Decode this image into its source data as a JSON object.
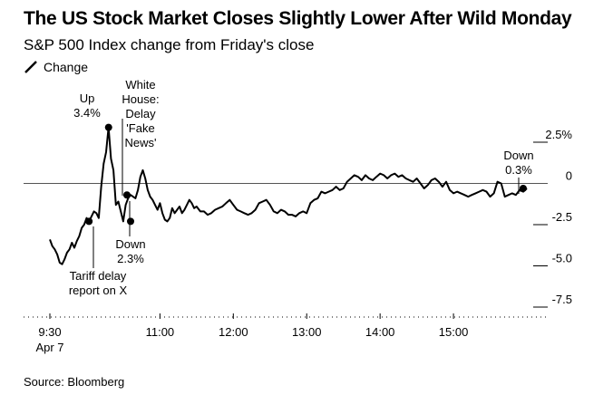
{
  "chart_data": {
    "type": "line",
    "title": "The US Stock Market Closes Slightly Lower After Wild Monday",
    "subtitle": "S&P 500 Index change from Friday's close",
    "legend": [
      {
        "label": "Change",
        "color": "#000000"
      }
    ],
    "source": "Source: Bloomberg",
    "xlabel": "",
    "ylabel": "",
    "x_ticks": [
      {
        "label": "9:30",
        "sublabel": "Apr 7",
        "value": 0
      },
      {
        "label": "11:00",
        "value": 90
      },
      {
        "label": "12:00",
        "value": 150
      },
      {
        "label": "13:00",
        "value": 210
      },
      {
        "label": "14:00",
        "value": 270
      },
      {
        "label": "15:00",
        "value": 330
      }
    ],
    "y_ticks": [
      {
        "label": "2.5%",
        "value": 2.5
      },
      {
        "label": "0",
        "value": 0
      },
      {
        "label": "-2.5",
        "value": -2.5
      },
      {
        "label": "-5.0",
        "value": -5.0
      },
      {
        "label": "-7.5",
        "value": -7.5
      }
    ],
    "xlim": [
      0,
      390
    ],
    "ylim": [
      -8.5,
      3.6
    ],
    "series": [
      {
        "name": "Change",
        "x": [
          0,
          2,
          4,
          6,
          8,
          10,
          12,
          14,
          16,
          18,
          20,
          22,
          24,
          26,
          28,
          30,
          32,
          34,
          36,
          38,
          40,
          42,
          44,
          46,
          48,
          50,
          52,
          54,
          56,
          58,
          60,
          62,
          64,
          66,
          68,
          70,
          72,
          74,
          76,
          78,
          80,
          82,
          84,
          86,
          88,
          90,
          92,
          94,
          96,
          98,
          100,
          102,
          104,
          106,
          108,
          110,
          112,
          114,
          116,
          118,
          120,
          123,
          126,
          129,
          132,
          135,
          138,
          141,
          144,
          147,
          150,
          153,
          156,
          159,
          162,
          165,
          168,
          171,
          174,
          177,
          180,
          183,
          186,
          189,
          192,
          195,
          198,
          201,
          204,
          207,
          210,
          213,
          216,
          219,
          222,
          225,
          228,
          231,
          234,
          237,
          240,
          243,
          246,
          249,
          252,
          255,
          258,
          261,
          264,
          267,
          270,
          273,
          276,
          279,
          282,
          285,
          288,
          291,
          294,
          297,
          300,
          303,
          306,
          309,
          312,
          315,
          318,
          321,
          324,
          327,
          330,
          333,
          336,
          339,
          342,
          345,
          348,
          351,
          354,
          357,
          360,
          363,
          366,
          369,
          372,
          375,
          378,
          381,
          384,
          387,
          390
        ],
        "y": [
          -3.4,
          -3.8,
          -4.0,
          -4.3,
          -4.8,
          -4.9,
          -4.6,
          -4.2,
          -4.0,
          -3.6,
          -3.9,
          -3.5,
          -3.2,
          -2.7,
          -2.5,
          -2.1,
          -2.3,
          -2.0,
          -1.7,
          -1.8,
          -2.1,
          -0.2,
          1.2,
          1.9,
          3.4,
          1.5,
          0.8,
          -1.3,
          -1.1,
          -1.7,
          -2.3,
          -1.3,
          -0.9,
          -0.7,
          -0.8,
          -0.9,
          -0.4,
          0.4,
          0.8,
          0.3,
          -0.4,
          -0.8,
          -1.0,
          -1.3,
          -1.6,
          -1.2,
          -1.8,
          -2.2,
          -2.3,
          -2.1,
          -1.5,
          -1.8,
          -1.6,
          -1.4,
          -1.8,
          -1.6,
          -1.3,
          -1.0,
          -1.2,
          -1.5,
          -1.4,
          -1.7,
          -1.7,
          -1.9,
          -1.8,
          -1.6,
          -1.5,
          -1.4,
          -1.2,
          -1.0,
          -1.3,
          -1.6,
          -1.7,
          -1.8,
          -1.9,
          -1.8,
          -1.6,
          -1.2,
          -1.1,
          -1.0,
          -1.3,
          -1.7,
          -1.8,
          -1.6,
          -1.7,
          -1.9,
          -1.9,
          -2.0,
          -1.8,
          -1.7,
          -1.8,
          -1.2,
          -1.0,
          -0.9,
          -0.5,
          -0.6,
          -0.5,
          -0.4,
          -0.2,
          -0.4,
          -0.3,
          0.1,
          0.3,
          0.5,
          0.4,
          0.2,
          0.5,
          0.3,
          0.2,
          0.4,
          0.6,
          0.5,
          0.3,
          0.5,
          0.6,
          0.4,
          0.5,
          0.3,
          0.2,
          0.1,
          0.3,
          0.0,
          -0.3,
          -0.1,
          0.2,
          0.3,
          0.1,
          -0.2,
          0.1,
          -0.4,
          -0.6,
          -0.5,
          -0.6,
          -0.7,
          -0.8,
          -0.7,
          -0.6,
          -0.5,
          -0.4,
          -0.5,
          -0.8,
          -0.6,
          0.1,
          0.0,
          -0.8,
          -0.7,
          -0.6,
          -0.7,
          -0.4,
          -0.5,
          -0.3
        ]
      }
    ],
    "annotations": [
      {
        "lines": [
          "Up",
          "3.4%"
        ],
        "x": 48,
        "y": 3.4
      },
      {
        "lines": [
          "White",
          "House:",
          "Delay",
          "'Fake",
          "News'"
        ],
        "x": 63,
        "y": -0.7
      },
      {
        "lines": [
          "Down",
          "2.3%"
        ],
        "x": 66,
        "y": -2.3
      },
      {
        "lines": [
          "Tariff delay",
          "report on X"
        ],
        "x": 32,
        "y": -2.3
      },
      {
        "lines": [
          "Down",
          "0.3%"
        ],
        "x": 387,
        "y": -0.3
      }
    ]
  }
}
